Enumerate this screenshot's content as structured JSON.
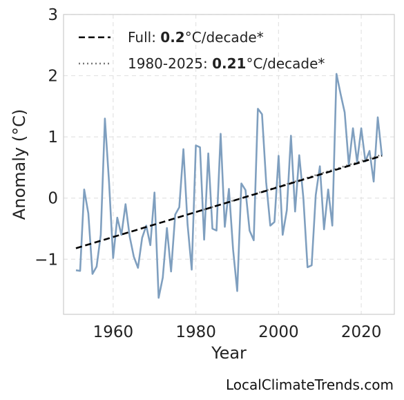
{
  "chart_data": {
    "type": "line",
    "title": "",
    "xlabel": "Year",
    "ylabel": "Anomaly (°C)",
    "xlim": [
      1948,
      2028
    ],
    "ylim": [
      -1.9,
      3.0
    ],
    "x_ticks": [
      1960,
      1980,
      2000,
      2020
    ],
    "y_ticks": [
      -1,
      0,
      1,
      2,
      3
    ],
    "y_tick_labels": [
      "−1",
      "0",
      "1",
      "2",
      "3"
    ],
    "grid": true,
    "legend_position": "top-left",
    "series": [
      {
        "name": "",
        "color": "#7f9fbf",
        "x": [
          1951,
          1952,
          1953,
          1954,
          1955,
          1956,
          1957,
          1958,
          1959,
          1960,
          1961,
          1962,
          1963,
          1964,
          1965,
          1966,
          1967,
          1968,
          1969,
          1970,
          1971,
          1972,
          1973,
          1974,
          1975,
          1976,
          1977,
          1978,
          1979,
          1980,
          1981,
          1982,
          1983,
          1984,
          1985,
          1986,
          1987,
          1988,
          1989,
          1990,
          1991,
          1992,
          1993,
          1994,
          1995,
          1996,
          1997,
          1998,
          1999,
          2000,
          2001,
          2002,
          2003,
          2004,
          2005,
          2006,
          2007,
          2008,
          2009,
          2010,
          2011,
          2012,
          2013,
          2014,
          2015,
          2016,
          2017,
          2018,
          2019,
          2020,
          2021,
          2022,
          2023,
          2024,
          2025
        ],
        "values": [
          -1.18,
          -1.19,
          0.14,
          -0.25,
          -1.24,
          -1.12,
          -0.6,
          1.3,
          0.26,
          -0.98,
          -0.32,
          -0.6,
          -0.1,
          -0.63,
          -0.96,
          -1.14,
          -0.65,
          -0.45,
          -0.77,
          0.09,
          -1.63,
          -1.3,
          -0.49,
          -1.2,
          -0.27,
          -0.15,
          0.8,
          -0.43,
          -1.17,
          0.86,
          0.83,
          -0.68,
          0.73,
          -0.5,
          -0.53,
          1.05,
          -0.47,
          0.15,
          -0.84,
          -1.52,
          0.24,
          0.13,
          -0.53,
          -0.69,
          1.46,
          1.37,
          0.26,
          -0.45,
          -0.39,
          0.69,
          -0.6,
          -0.2,
          1.02,
          -0.22,
          0.7,
          0.0,
          -1.13,
          -1.1,
          0.05,
          0.52,
          -0.51,
          0.14,
          -0.45,
          2.03,
          1.7,
          1.4,
          0.54,
          1.14,
          0.59,
          1.14,
          0.6,
          0.77,
          0.27,
          1.32,
          0.69
        ]
      }
    ],
    "trend_lines": [
      {
        "name": "Full",
        "style": "dashed",
        "color": "#000000",
        "x": [
          1951,
          2025
        ],
        "values": [
          -0.82,
          0.69
        ]
      },
      {
        "name": "1980-2025",
        "style": "dotted",
        "color": "#777777",
        "x": [
          1980,
          2025
        ],
        "values": [
          -0.23,
          0.71
        ]
      }
    ],
    "legend": [
      {
        "style": "dashed",
        "color": "#000000",
        "prefix": "Full: ",
        "value": "0.2",
        "suffix": "°C/decade*"
      },
      {
        "style": "dotted",
        "color": "#777777",
        "prefix": "1980-2025: ",
        "value": "0.21",
        "suffix": "°C/decade*"
      }
    ]
  },
  "footer": {
    "text": "LocalClimateTrends.com"
  }
}
